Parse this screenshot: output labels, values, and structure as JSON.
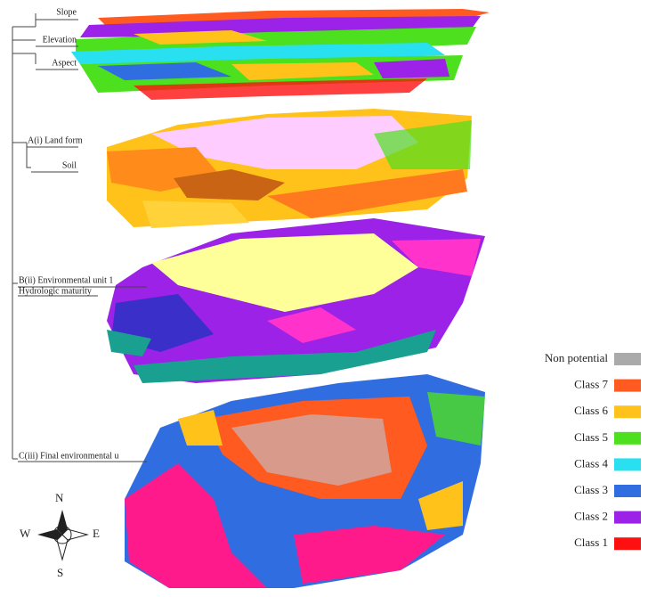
{
  "labels": {
    "slope": "Slope",
    "elevation": "Elevation",
    "aspect": "Aspect",
    "land_form": "A(i) Land form",
    "soil": "Soil",
    "environmental_unit": "B(ii) Environmental unit 1",
    "hydrologic": "Hydrologic maturity",
    "final": "C(iii) Final environmental u"
  },
  "compass": {
    "north": "N",
    "east": "E",
    "south": "S",
    "west": "W"
  },
  "legend": [
    {
      "label": "Non potential",
      "color": "#aaaaaa"
    },
    {
      "label": "Class 7",
      "color": "#ff5a1f"
    },
    {
      "label": "Class 6",
      "color": "#ffc21a"
    },
    {
      "label": "Class 5",
      "color": "#4de01f"
    },
    {
      "label": "Class 4",
      "color": "#28e0f0"
    },
    {
      "label": "Class 3",
      "color": "#2f6de0"
    },
    {
      "label": "Class 2",
      "color": "#9b22e6"
    },
    {
      "label": "Class 1",
      "color": "#ff1010"
    }
  ]
}
